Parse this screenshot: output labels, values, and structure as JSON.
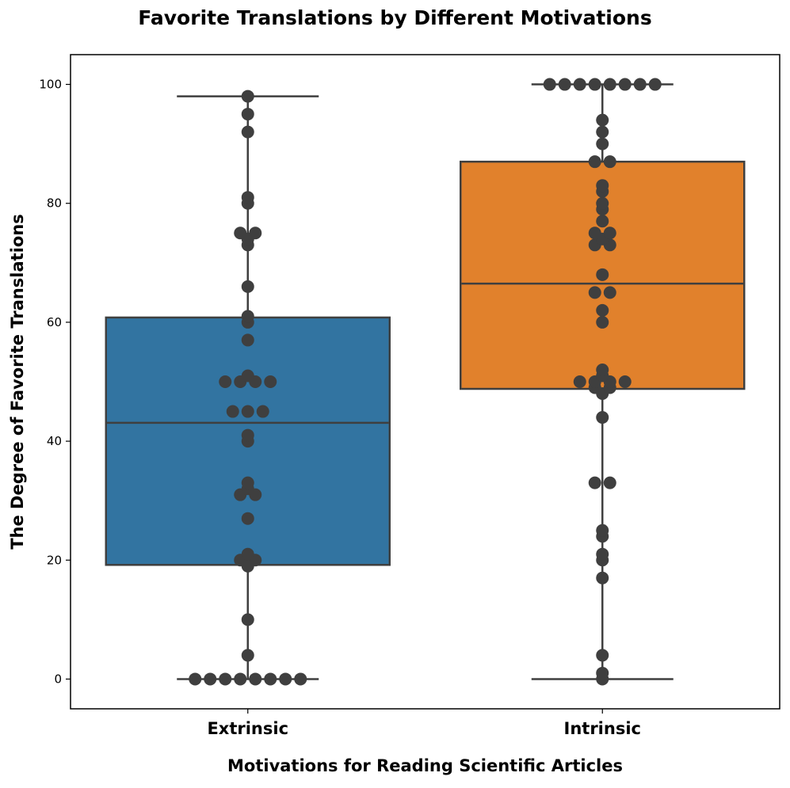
{
  "chart_data": {
    "type": "box",
    "title": "Favorite Translations by Different Motivations",
    "xlabel": "Motivations for Reading Scientific Articles",
    "ylabel": "The Degree of Favorite Translations",
    "ylim": [
      -5,
      105
    ],
    "yticks": [
      0,
      20,
      40,
      60,
      80,
      100
    ],
    "grid": false,
    "categories": [
      "Extrinsic",
      "Intrinsic"
    ],
    "box_colors": [
      "#3274a1",
      "#e1812c"
    ],
    "point_color": "#3f3f3f",
    "line_color": "#3f3f3f",
    "boxes": [
      {
        "q1": 19.2,
        "median": 43.1,
        "q3": 60.8,
        "whisker_low": 0,
        "whisker_high": 98
      },
      {
        "q1": 48.8,
        "median": 66.5,
        "q3": 87,
        "whisker_low": 0,
        "whisker_high": 100
      }
    ],
    "points": [
      [
        98,
        95,
        92,
        81,
        80,
        75,
        75,
        74,
        73,
        66,
        61,
        60,
        57,
        51,
        50,
        50,
        50,
        50,
        45,
        45,
        45,
        41,
        40,
        33,
        32,
        31,
        31,
        27,
        21,
        20,
        20,
        19,
        10,
        4,
        0,
        0,
        0,
        0,
        0,
        0,
        0,
        0
      ],
      [
        100,
        100,
        100,
        100,
        100,
        100,
        100,
        100,
        94,
        92,
        90,
        87,
        87,
        83,
        82,
        80,
        79,
        77,
        75,
        75,
        74,
        73,
        73,
        68,
        65,
        65,
        62,
        60,
        52,
        51,
        50,
        50,
        50,
        50,
        49,
        49,
        48,
        44,
        33,
        33,
        25,
        24,
        21,
        20,
        17,
        4,
        1,
        0
      ]
    ]
  }
}
